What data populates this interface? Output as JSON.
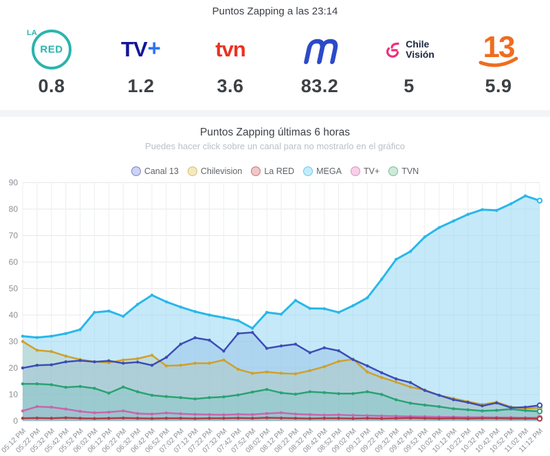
{
  "header": {
    "title": "Puntos Zapping a las 23:14",
    "channels": [
      {
        "name": "La RED",
        "value": "0.8",
        "logo_la": "LA",
        "logo_text": "RED",
        "color": "#2ab4af"
      },
      {
        "name": "TV+",
        "value": "1.2",
        "logo_tv": "TV",
        "logo_plus": "+",
        "color": "#141597"
      },
      {
        "name": "TVN",
        "value": "3.6",
        "logo_text": "tvn",
        "color": "#ea3323"
      },
      {
        "name": "MEGA",
        "value": "83.2",
        "color": "#2c4ac8"
      },
      {
        "name": "Chilevisión",
        "value": "5",
        "logo_line1": "Chile",
        "logo_line2": "Visión",
        "color": "#ef2e7d"
      },
      {
        "name": "Canal 13",
        "value": "5.9",
        "logo_text": "13",
        "color": "#f06c1e"
      }
    ]
  },
  "chart": {
    "title": "Puntos Zapping últimas 6 horas",
    "subtitle": "Puedes hacer click sobre un canal para no mostrarlo en el gráfico"
  },
  "chart_data": {
    "type": "area",
    "title": "Puntos Zapping últimas 6 horas",
    "xlabel": "",
    "ylabel": "",
    "ylim": [
      0,
      90
    ],
    "yticks": [
      0,
      10,
      20,
      30,
      40,
      50,
      60,
      70,
      80,
      90
    ],
    "grid": true,
    "legend_position": "top",
    "x": [
      "05:12 PM",
      "05:22 PM",
      "05:32 PM",
      "05:42 PM",
      "05:52 PM",
      "06:02 PM",
      "06:12 PM",
      "06:22 PM",
      "06:32 PM",
      "06:42 PM",
      "06:52 PM",
      "07:02 PM",
      "07:12 PM",
      "07:22 PM",
      "07:32 PM",
      "07:42 PM",
      "07:52 PM",
      "08:02 PM",
      "08:12 PM",
      "08:22 PM",
      "08:32 PM",
      "08:42 PM",
      "08:52 PM",
      "09:02 PM",
      "09:12 PM",
      "09:22 PM",
      "09:32 PM",
      "09:42 PM",
      "09:52 PM",
      "10:02 PM",
      "10:12 PM",
      "10:22 PM",
      "10:32 PM",
      "10:42 PM",
      "10:52 PM",
      "11:02 PM",
      "11:12 PM"
    ],
    "series": [
      {
        "name": "Canal 13",
        "color": "#3c4db5",
        "fill": "rgba(90,110,200,0.30)",
        "swatch": "#ccd3f2",
        "values": [
          20,
          21,
          21.2,
          22.3,
          22.8,
          22.3,
          22.7,
          21.8,
          22.2,
          21,
          24,
          29,
          31.4,
          30.5,
          26.4,
          33,
          33.4,
          27.4,
          28.3,
          29,
          25.8,
          27.6,
          26.5,
          23.2,
          20.8,
          18.2,
          15.9,
          14.5,
          11.5,
          9.7,
          8,
          7,
          5.7,
          6.8,
          5,
          5.2,
          5.9
        ]
      },
      {
        "name": "Chilevision",
        "color": "#cfa02c",
        "fill": "rgba(213,170,60,0.30)",
        "swatch": "#f2e9c2",
        "values": [
          30,
          26.7,
          26.2,
          24.5,
          23.2,
          22.4,
          22,
          23,
          23.5,
          24.8,
          20.8,
          21,
          21.8,
          21.8,
          23,
          19.5,
          18,
          18.5,
          18,
          17.8,
          19,
          20.5,
          22.5,
          23.3,
          18.5,
          16.4,
          14.7,
          12.8,
          11.7,
          9.7,
          8.5,
          7.3,
          6.2,
          7.1,
          5.3,
          4.6,
          5
        ]
      },
      {
        "name": "La RED",
        "color": "#ac3d44",
        "fill": "rgba(190,80,90,0.30)",
        "swatch": "#efc7ca",
        "values": [
          1,
          1.1,
          1,
          1.2,
          1,
          0.9,
          1,
          1.1,
          1,
          0.9,
          1,
          1,
          0.9,
          1,
          1,
          1.1,
          1,
          1.2,
          1.1,
          1,
          0.9,
          1,
          1,
          0.9,
          1,
          0.9,
          1,
          1.1,
          1,
          0.9,
          1,
          0.9,
          1,
          1,
          0.9,
          0.9,
          0.8
        ]
      },
      {
        "name": "MEGA",
        "color": "#29b7ea",
        "fill": "rgba(150,215,243,0.55)",
        "swatch": "#c5ebfa",
        "values": [
          32,
          31.5,
          32,
          33,
          34.5,
          41,
          41.5,
          39.5,
          44,
          47.5,
          45,
          43,
          41.3,
          40,
          39,
          37.9,
          35,
          41,
          40.3,
          45.5,
          42.5,
          42.4,
          41,
          43.5,
          46.5,
          53.5,
          61,
          64,
          69.5,
          73,
          75.5,
          78,
          79.8,
          79.5,
          82,
          85,
          83.2
        ]
      },
      {
        "name": "TV+",
        "color": "#c667ad",
        "fill": "rgba(215,120,180,0.30)",
        "swatch": "#f7d0e9",
        "values": [
          3.8,
          5.4,
          5.2,
          4.5,
          3.6,
          3.1,
          3.3,
          3.8,
          2.8,
          2.6,
          3,
          2.7,
          2.5,
          2.4,
          2.3,
          2.5,
          2.4,
          2.8,
          3.1,
          2.6,
          2.4,
          2.2,
          2.3,
          2.1,
          2,
          1.9,
          1.8,
          1.7,
          1.6,
          1.5,
          1.5,
          1.4,
          1.4,
          1.3,
          1.3,
          1.2,
          1.2
        ]
      },
      {
        "name": "TVN",
        "color": "#2aa273",
        "fill": "rgba(80,170,130,0.35)",
        "swatch": "#cfead9",
        "values": [
          14,
          14,
          13.7,
          12.7,
          13,
          12.3,
          10.5,
          12.8,
          11,
          9.7,
          9.2,
          8.8,
          8.3,
          8.8,
          9.1,
          9.8,
          10.9,
          11.9,
          10.6,
          10.1,
          11,
          10.7,
          10.3,
          10.3,
          11,
          10,
          8,
          6.7,
          6,
          5.4,
          4.6,
          4.2,
          3.8,
          4,
          4.5,
          3.9,
          3.6
        ]
      }
    ]
  }
}
